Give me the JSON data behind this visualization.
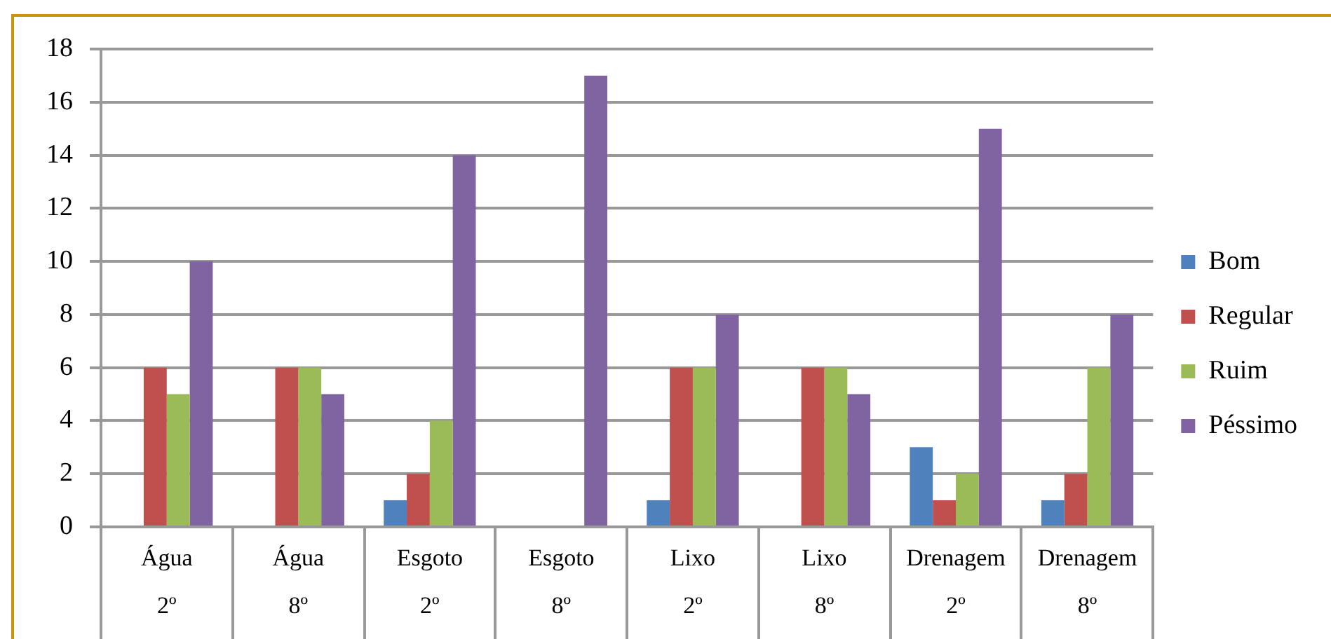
{
  "chart_data": {
    "type": "bar",
    "categories": [
      "Água 2º",
      "Água 8º",
      "Esgoto 2º",
      "Esgoto 8º",
      "Lixo 2º",
      "Lixo 8º",
      "Drenagem 2º",
      "Drenagem 8º"
    ],
    "series": [
      {
        "name": "Bom",
        "color": "#4f81bd",
        "values": [
          0,
          0,
          1,
          0,
          1,
          0,
          3,
          1
        ]
      },
      {
        "name": "Regular",
        "color": "#c0504d",
        "values": [
          6,
          6,
          2,
          0,
          6,
          6,
          1,
          2
        ]
      },
      {
        "name": "Ruim",
        "color": "#9bbb59",
        "values": [
          5,
          6,
          4,
          0,
          6,
          6,
          2,
          6
        ]
      },
      {
        "name": "Péssimo",
        "color": "#8064a2",
        "values": [
          10,
          5,
          14,
          17,
          8,
          5,
          15,
          8
        ]
      }
    ],
    "ylim": [
      0,
      18
    ],
    "yticks": [
      0,
      2,
      4,
      6,
      8,
      10,
      12,
      14,
      16,
      18
    ],
    "grid": "y",
    "legend": "right"
  }
}
